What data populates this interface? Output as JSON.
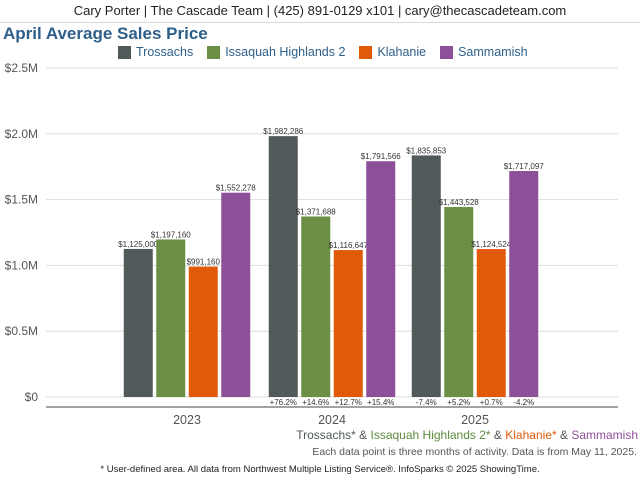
{
  "header": {
    "text": "Cary Porter | The Cascade Team | (425) 891-0129 x101 | cary@thecascadeteam.com"
  },
  "footer": {
    "areas": [
      {
        "label": "Trossachs*",
        "color": "#51595a"
      },
      {
        "label": " & ",
        "color": "#555555"
      },
      {
        "label": "Issaquah Highlands 2*",
        "color": "#5b8a3c"
      },
      {
        "label": " & ",
        "color": "#555555"
      },
      {
        "label": "Klahanie*",
        "color": "#e05a0a"
      },
      {
        "label": " & ",
        "color": "#555555"
      },
      {
        "label": "Sammamish",
        "color": "#8e4f99"
      }
    ],
    "note": "Each data point is three months of activity. Data is from May 11, 2025.",
    "disclaimer": "* User-defined area. All data from Northwest Multiple Listing Service®. InfoSparks © 2025 ShowingTime."
  },
  "chart_data": {
    "type": "bar",
    "title": "April Average Sales Price",
    "categories": [
      "2023",
      "2024",
      "2025"
    ],
    "ylim": [
      0,
      2500000
    ],
    "y_ticks": [
      {
        "value": 0,
        "label": "$0"
      },
      {
        "value": 500000,
        "label": "$0.5M"
      },
      {
        "value": 1000000,
        "label": "$1.0M"
      },
      {
        "value": 1500000,
        "label": "$1.5M"
      },
      {
        "value": 2000000,
        "label": "$2.0M"
      },
      {
        "value": 2500000,
        "label": "$2.5M"
      }
    ],
    "grid": true,
    "legend_position": "top",
    "series": [
      {
        "name": "Trossachs",
        "color": "#51595a",
        "values": [
          1125000,
          1982286,
          1835853
        ],
        "labels": [
          "$1,125,000",
          "$1,982,286",
          "$1,835,853"
        ],
        "changes": [
          "",
          "+76.2%",
          "-7.4%"
        ]
      },
      {
        "name": "Issaquah Highlands 2",
        "color": "#6a8f45",
        "values": [
          1197160,
          1371688,
          1443528
        ],
        "labels": [
          "$1,197,160",
          "$1,371,688",
          "$1,443,528"
        ],
        "changes": [
          "",
          "+14.6%",
          "+5.2%"
        ]
      },
      {
        "name": "Klahanie",
        "color": "#e05a0a",
        "values": [
          991160,
          1116647,
          1124524
        ],
        "labels": [
          "$991,160",
          "$1,116,647",
          "$1,124,524"
        ],
        "changes": [
          "",
          "+12.7%",
          "+0.7%"
        ]
      },
      {
        "name": "Sammamish",
        "color": "#8e4f99",
        "values": [
          1552278,
          1791566,
          1717097
        ],
        "labels": [
          "$1,552,278",
          "$1,791,566",
          "$1,717,097"
        ],
        "changes": [
          "",
          "+15.4%",
          "-4.2%"
        ]
      }
    ]
  }
}
